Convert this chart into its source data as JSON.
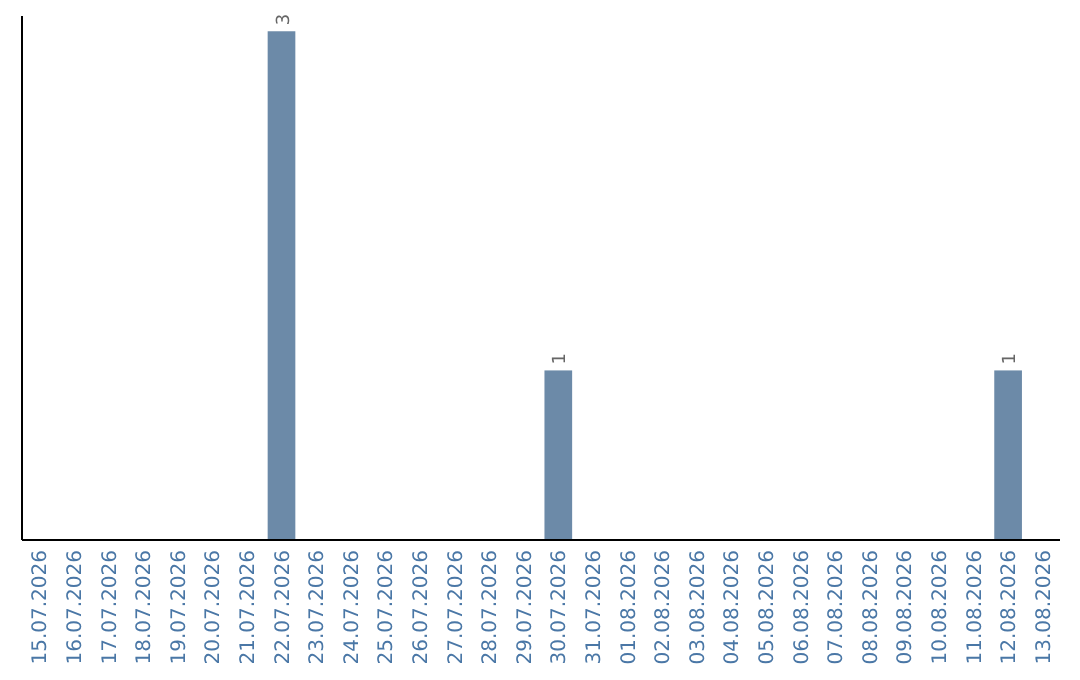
{
  "chart_data": {
    "type": "bar",
    "categories": [
      "15.07.2026",
      "16.07.2026",
      "17.07.2026",
      "18.07.2026",
      "19.07.2026",
      "20.07.2026",
      "21.07.2026",
      "22.07.2026",
      "23.07.2026",
      "24.07.2026",
      "25.07.2026",
      "26.07.2026",
      "27.07.2026",
      "28.07.2026",
      "29.07.2026",
      "30.07.2026",
      "31.07.2026",
      "01.08.2026",
      "02.08.2026",
      "03.08.2026",
      "04.08.2026",
      "05.08.2026",
      "06.08.2026",
      "07.08.2026",
      "08.08.2026",
      "09.08.2026",
      "10.08.2026",
      "11.08.2026",
      "12.08.2026",
      "13.08.2026"
    ],
    "values": [
      0,
      0,
      0,
      0,
      0,
      0,
      0,
      3,
      0,
      0,
      0,
      0,
      0,
      0,
      0,
      1,
      0,
      0,
      0,
      0,
      0,
      0,
      0,
      0,
      0,
      0,
      0,
      0,
      1,
      0
    ],
    "value_labels": [
      null,
      null,
      null,
      null,
      null,
      null,
      null,
      "3",
      null,
      null,
      null,
      null,
      null,
      null,
      null,
      "1",
      null,
      null,
      null,
      null,
      null,
      null,
      null,
      null,
      null,
      null,
      null,
      null,
      "1",
      null
    ],
    "color": "#6c8aa8",
    "tick_labels": "x"
  }
}
